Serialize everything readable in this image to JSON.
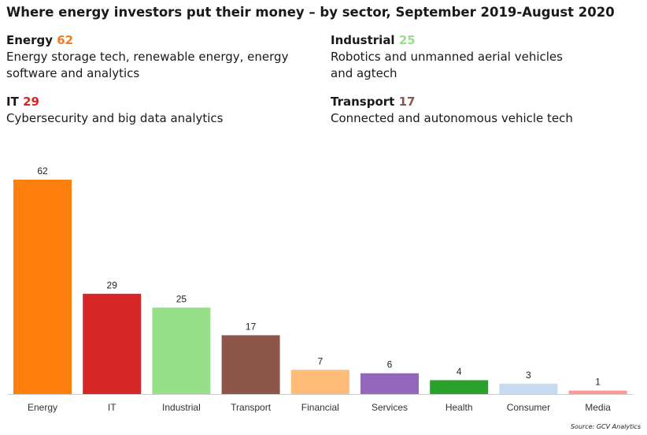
{
  "title": "Where energy investors put their money – by sector, September 2019-August 2020",
  "highlights": [
    {
      "id": "energy",
      "label": "Energy",
      "value": "62",
      "color": "#f47b20",
      "description": "Energy storage tech, renewable energy, energy software and analytics"
    },
    {
      "id": "industrial",
      "label": "Industrial",
      "value": "25",
      "color": "#98df8a",
      "description": "Robotics and unmanned aerial vehicles and agtech"
    },
    {
      "id": "it",
      "label": "IT",
      "value": "29",
      "color": "#d62728",
      "description": "Cybersecurity and big data analytics"
    },
    {
      "id": "transport",
      "label": "Transport",
      "value": "17",
      "color": "#8c564b",
      "description": "Connected and autonomous vehicle tech"
    }
  ],
  "chart_data": {
    "type": "bar",
    "title": "",
    "xlabel": "",
    "ylabel": "",
    "ylim": [
      0,
      62
    ],
    "grid": false,
    "categories": [
      "Energy",
      "IT",
      "Industrial",
      "Transport",
      "Financial",
      "Services",
      "Health",
      "Consumer",
      "Media"
    ],
    "values": [
      62,
      29,
      25,
      17,
      7,
      6,
      4,
      3,
      1
    ],
    "colors": [
      "#ff7f0e",
      "#d62728",
      "#98df8a",
      "#8c564b",
      "#ffbb78",
      "#9467bd",
      "#2ca02c",
      "#c6dbef",
      "#ff9896"
    ]
  },
  "source": "Source: GCV Analytics"
}
